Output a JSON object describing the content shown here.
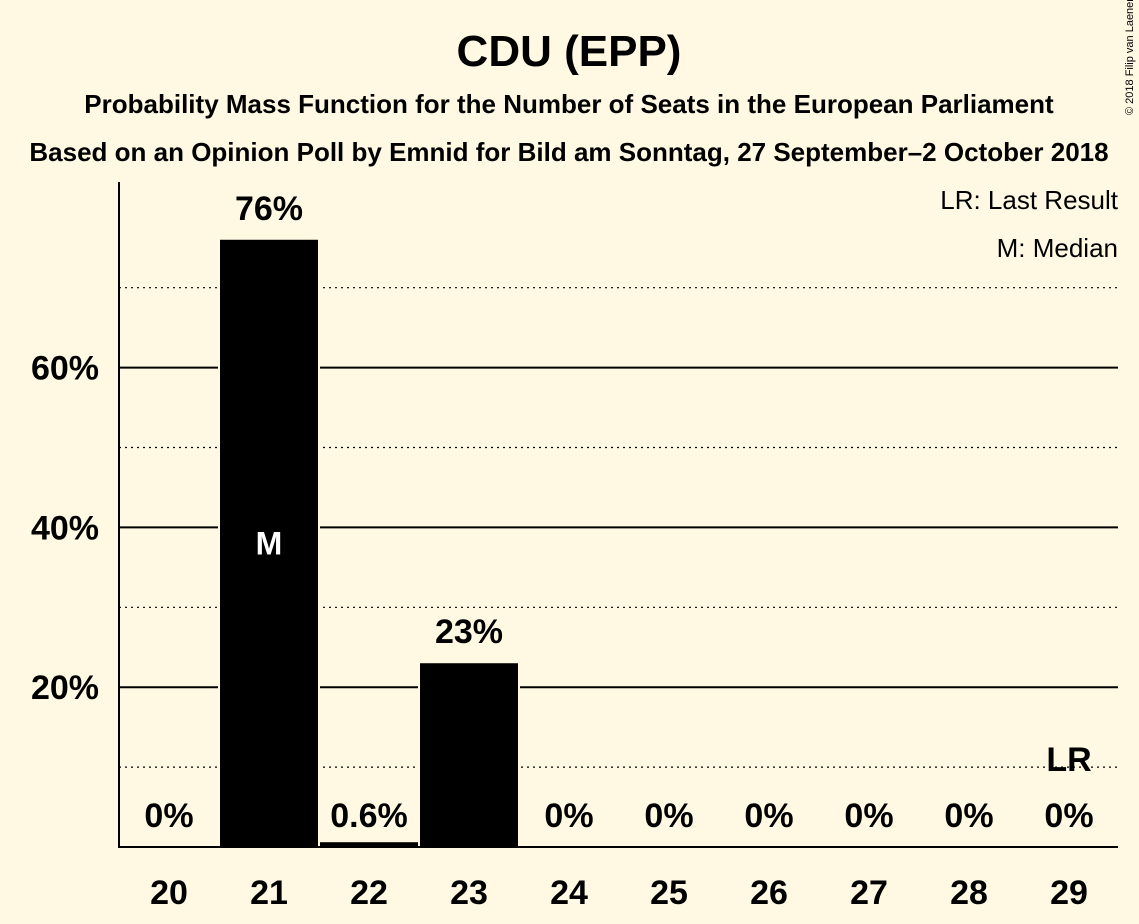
{
  "chart_data": {
    "type": "bar",
    "title": "CDU (EPP)",
    "subtitle": "Probability Mass Function for the Number of Seats in the European Parliament",
    "subtitle2": "Based on an Opinion Poll by Emnid for Bild am Sonntag, 27 September–2 October 2018",
    "copyright": "© 2018 Filip van Laenen",
    "categories": [
      "20",
      "21",
      "22",
      "23",
      "24",
      "25",
      "26",
      "27",
      "28",
      "29"
    ],
    "values": [
      0,
      76,
      0.6,
      23,
      0,
      0,
      0,
      0,
      0,
      0
    ],
    "value_labels": [
      "0%",
      "76%",
      "0.6%",
      "23%",
      "0%",
      "0%",
      "0%",
      "0%",
      "0%",
      "0%"
    ],
    "ylim": [
      0,
      83
    ],
    "yticks": [
      20,
      40,
      60
    ],
    "ytick_labels": [
      "20%",
      "40%",
      "60%"
    ],
    "minor_gridlines": [
      10,
      30,
      50,
      70
    ],
    "median_category": "21",
    "median_marker": "M",
    "last_result_category": "29",
    "last_result_marker": "LR",
    "last_result_value": 10,
    "legend": [
      "LR: Last Result",
      "M: Median"
    ],
    "legend_position": "top-right",
    "colors": {
      "bar": "#000000",
      "background": "#FFF9E3",
      "median_text": "#FFFFFF"
    }
  }
}
